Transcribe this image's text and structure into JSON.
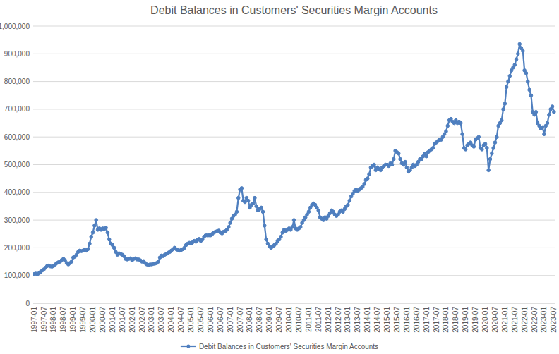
{
  "chart_data": {
    "type": "line",
    "title": "Debit Balances in Customers' Securities Margin Accounts",
    "categories": [
      "1997-01",
      null,
      null,
      null,
      null,
      null,
      "1997-07",
      null,
      null,
      null,
      null,
      null,
      "1998-01",
      null,
      null,
      null,
      null,
      null,
      "1998-07",
      null,
      null,
      null,
      null,
      null,
      "1999-01",
      null,
      null,
      null,
      null,
      null,
      "1999-07",
      null,
      null,
      null,
      null,
      null,
      "2000-01",
      null,
      null,
      null,
      null,
      null,
      "2000-07",
      null,
      null,
      null,
      null,
      null,
      "2001-01",
      null,
      null,
      null,
      null,
      null,
      "2001-07",
      null,
      null,
      null,
      null,
      null,
      "2002-01",
      null,
      null,
      null,
      null,
      null,
      "2002-07",
      null,
      null,
      null,
      null,
      null,
      "2003-01",
      null,
      null,
      null,
      null,
      null,
      "2003-07",
      null,
      null,
      null,
      null,
      null,
      "2004-01",
      null,
      null,
      null,
      null,
      null,
      "2004-07",
      null,
      null,
      null,
      null,
      null,
      "2005-01",
      null,
      null,
      null,
      null,
      null,
      "2005-07",
      null,
      null,
      null,
      null,
      null,
      "2006-01",
      null,
      null,
      null,
      null,
      null,
      "2006-07",
      null,
      null,
      null,
      null,
      null,
      "2007-01",
      null,
      null,
      null,
      null,
      null,
      "2007-07",
      null,
      null,
      null,
      null,
      null,
      "2008-01",
      null,
      null,
      null,
      null,
      null,
      "2008-07",
      null,
      null,
      null,
      null,
      null,
      "2009-01",
      null,
      null,
      null,
      null,
      null,
      "2009-07",
      null,
      null,
      null,
      null,
      null,
      "2010-01",
      null,
      null,
      null,
      null,
      null,
      "2010-07",
      null,
      null,
      null,
      null,
      null,
      "2011-01",
      null,
      null,
      null,
      null,
      null,
      "2011-07",
      null,
      null,
      null,
      null,
      null,
      "2012-01",
      null,
      null,
      null,
      null,
      null,
      "2012-07",
      null,
      null,
      null,
      null,
      null,
      "2013-01",
      null,
      null,
      null,
      null,
      null,
      "2013-07",
      null,
      null,
      null,
      null,
      null,
      "2014-01",
      null,
      null,
      null,
      null,
      null,
      "2014-07",
      null,
      null,
      null,
      null,
      null,
      "2015-01",
      null,
      null,
      null,
      null,
      null,
      "2015-07",
      null,
      null,
      null,
      null,
      null,
      "2016-01",
      null,
      null,
      null,
      null,
      null,
      "2016-07",
      null,
      null,
      null,
      null,
      null,
      "2017-01",
      null,
      null,
      null,
      null,
      null,
      "2017-07",
      null,
      null,
      null,
      null,
      null,
      "2018-01",
      null,
      null,
      null,
      null,
      null,
      "2018-07",
      null,
      null,
      null,
      null,
      null,
      "2019-01",
      null,
      null,
      null,
      null,
      null,
      "2019-07",
      null,
      null,
      null,
      null,
      null,
      "2020-01",
      null,
      null,
      null,
      null,
      null,
      "2020-07",
      null,
      null,
      null,
      null,
      null,
      "2021-01",
      null,
      null,
      null,
      null,
      null,
      "2021-07",
      null,
      null,
      null,
      null,
      null,
      "2022-01",
      null,
      null,
      null,
      null,
      null,
      "2022-07",
      null,
      null,
      null,
      null,
      null,
      "2023-01",
      null,
      null,
      null,
      null,
      null,
      "2023-07"
    ],
    "series": [
      {
        "name": "Debit Balances in Customers' Securities Margin Accounts",
        "color": "#4f7fbf",
        "marker": "circle",
        "values": [
          105000,
          107000,
          104000,
          108000,
          113000,
          118000,
          122000,
          128000,
          134000,
          136000,
          133000,
          132000,
          135000,
          140000,
          145000,
          148000,
          150000,
          156000,
          160000,
          155000,
          145000,
          140000,
          145000,
          150000,
          165000,
          168000,
          175000,
          185000,
          190000,
          188000,
          190000,
          193000,
          190000,
          195000,
          215000,
          240000,
          255000,
          280000,
          300000,
          265000,
          270000,
          265000,
          270000,
          268000,
          272000,
          255000,
          230000,
          215000,
          210000,
          200000,
          185000,
          175000,
          180000,
          178000,
          175000,
          170000,
          160000,
          158000,
          160000,
          162000,
          155000,
          160000,
          162000,
          158000,
          158000,
          155000,
          150000,
          152000,
          145000,
          140000,
          138000,
          140000,
          140000,
          142000,
          143000,
          145000,
          150000,
          165000,
          172000,
          170000,
          175000,
          178000,
          182000,
          185000,
          190000,
          195000,
          200000,
          195000,
          192000,
          190000,
          192000,
          195000,
          200000,
          210000,
          215000,
          218000,
          215000,
          220000,
          225000,
          222000,
          228000,
          232000,
          225000,
          230000,
          240000,
          245000,
          245000,
          245000,
          245000,
          250000,
          255000,
          258000,
          260000,
          262000,
          255000,
          252000,
          258000,
          260000,
          265000,
          275000,
          290000,
          305000,
          315000,
          320000,
          330000,
          380000,
          410000,
          415000,
          370000,
          365000,
          380000,
          370000,
          345000,
          355000,
          360000,
          380000,
          350000,
          335000,
          340000,
          345000,
          330000,
          280000,
          230000,
          215000,
          205000,
          200000,
          205000,
          210000,
          215000,
          225000,
          230000,
          240000,
          255000,
          265000,
          260000,
          265000,
          270000,
          265000,
          275000,
          300000,
          270000,
          265000,
          270000,
          275000,
          290000,
          300000,
          310000,
          320000,
          330000,
          345000,
          355000,
          360000,
          355000,
          345000,
          335000,
          310000,
          305000,
          300000,
          310000,
          305000,
          315000,
          325000,
          335000,
          330000,
          320000,
          315000,
          320000,
          330000,
          335000,
          330000,
          340000,
          350000,
          355000,
          370000,
          385000,
          395000,
          405000,
          410000,
          405000,
          410000,
          415000,
          420000,
          430000,
          445000,
          450000,
          465000,
          490000,
          495000,
          500000,
          480000,
          490000,
          485000,
          480000,
          490000,
          495000,
          500000,
          500000,
          495000,
          505000,
          500000,
          520000,
          550000,
          545000,
          540000,
          520000,
          505000,
          500000,
          510000,
          490000,
          475000,
          480000,
          490000,
          500000,
          495000,
          500000,
          510000,
          520000,
          520000,
          530000,
          540000,
          530000,
          545000,
          550000,
          555000,
          560000,
          575000,
          580000,
          585000,
          590000,
          590000,
          600000,
          610000,
          620000,
          640000,
          660000,
          665000,
          655000,
          650000,
          660000,
          650000,
          655000,
          650000,
          610000,
          560000,
          555000,
          570000,
          575000,
          580000,
          570000,
          565000,
          590000,
          595000,
          600000,
          560000,
          555000,
          570000,
          575000,
          560000,
          480000,
          520000,
          540000,
          560000,
          580000,
          600000,
          640000,
          650000,
          660000,
          700000,
          720000,
          780000,
          800000,
          820000,
          840000,
          850000,
          860000,
          880000,
          900000,
          935000,
          920000,
          910000,
          840000,
          830000,
          800000,
          770000,
          750000,
          690000,
          680000,
          690000,
          650000,
          640000,
          630000,
          635000,
          610000,
          640000,
          650000,
          680000,
          700000,
          710000,
          690000
        ]
      }
    ],
    "ylim": [
      0,
      1000000
    ],
    "yticks": [
      0,
      {
        "value": 100000,
        "label": "100,000"
      },
      {
        "value": 200000,
        "label": "200,000"
      },
      {
        "value": 300000,
        "label": "300,000"
      },
      {
        "value": 400000,
        "label": "400,000"
      },
      {
        "value": 500000,
        "label": "500,000"
      },
      {
        "value": 600000,
        "label": "600,000"
      },
      {
        "value": 700000,
        "label": "700,000"
      },
      {
        "value": 800000,
        "label": "800,000"
      },
      {
        "value": 900000,
        "label": "900,000"
      },
      {
        "value": 1000000,
        "label": "1,000,000"
      }
    ],
    "grid": true,
    "legend": "bottom"
  }
}
